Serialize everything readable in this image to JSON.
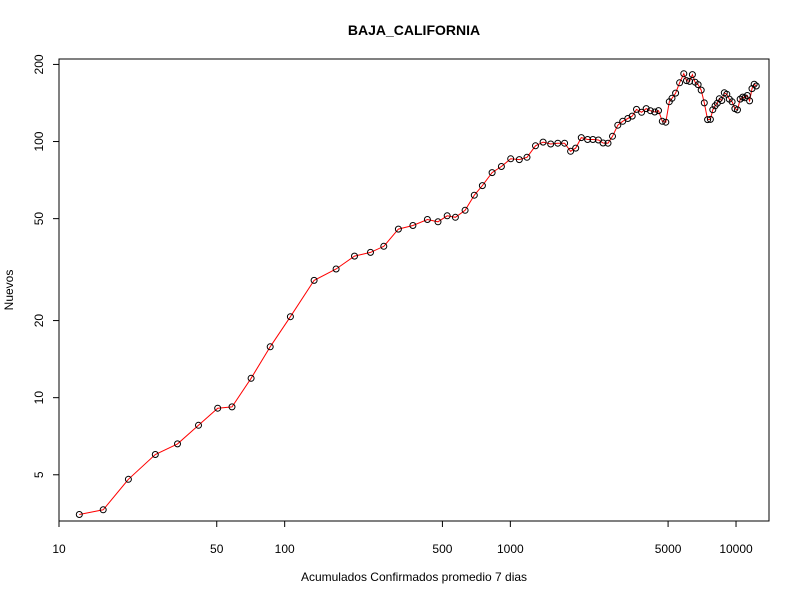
{
  "chart_data": {
    "type": "line",
    "title": "BAJA_CALIFORNIA",
    "xlabel": "Acumulados Confirmados promedio  7  dias",
    "ylabel": "Nuevos",
    "x_scale": "log",
    "y_scale": "log",
    "xlim": [
      10,
      14000
    ],
    "ylim": [
      3.3,
      210
    ],
    "grid": false,
    "legend": "none",
    "x_ticks": [
      10,
      50,
      100,
      500,
      1000,
      5000,
      10000
    ],
    "x_tick_labels": [
      "10",
      "50",
      "100",
      "500",
      "1000",
      "5000",
      "10000"
    ],
    "y_ticks": [
      5,
      10,
      20,
      50,
      100,
      200
    ],
    "y_tick_labels": [
      "5",
      "10",
      "20",
      "50",
      "100",
      "200"
    ],
    "line_color": "#ff0000",
    "marker_color": "#000000",
    "series": [
      {
        "x": [
          12.3,
          15.7,
          20.3,
          26.7,
          33.5,
          41.5,
          50.5,
          58.4,
          71,
          86.3,
          106,
          135,
          169,
          204,
          240,
          275,
          319,
          370,
          429,
          478,
          525,
          571,
          630,
          692,
          752,
          830,
          913,
          1004,
          1096,
          1185,
          1293,
          1397,
          1509,
          1622,
          1740,
          1850,
          1947,
          2063,
          2200,
          2322,
          2456,
          2575,
          2709,
          2836,
          2994,
          3147,
          3314,
          3467,
          3622,
          3814,
          4000,
          4175,
          4363,
          4532,
          4715,
          4885,
          5060,
          5202,
          5400,
          5622,
          5868,
          6035,
          6226,
          6408,
          6585,
          6791,
          7011,
          7232,
          7480,
          7700,
          7888,
          8075,
          8258,
          8433,
          8645,
          8874,
          9100,
          9334,
          9609,
          9883,
          10151,
          10436,
          10700,
          10948,
          11217,
          11484,
          11770,
          12034,
          12298
        ],
        "y": [
          3.5,
          3.65,
          4.8,
          6.0,
          6.6,
          7.8,
          9.1,
          9.2,
          11.9,
          15.8,
          20.7,
          28.7,
          31.8,
          35.7,
          36.9,
          39.0,
          45.5,
          47.0,
          49.6,
          48.6,
          51.3,
          50.6,
          53.9,
          61.7,
          67.3,
          75.6,
          79.9,
          85.6,
          85.0,
          86.8,
          96.2,
          99.5,
          97.8,
          98.5,
          98.5,
          91.6,
          94.3,
          103.6,
          101.8,
          101.8,
          101.4,
          98.7,
          98.5,
          104.8,
          115.8,
          120.0,
          123.0,
          125.7,
          133.5,
          130.1,
          134.4,
          131.9,
          130.4,
          132.1,
          120.0,
          119.0,
          143.0,
          147.5,
          154.5,
          169.5,
          184.0,
          173.0,
          171.7,
          182.5,
          170.5,
          166.8,
          158.8,
          141.5,
          121.8,
          122.0,
          133.1,
          137.9,
          141.1,
          146.9,
          144.6,
          155.0,
          153.1,
          146.5,
          142.9,
          134.4,
          132.9,
          146.5,
          149.1,
          148.2,
          151.3,
          144.1,
          160.9,
          167.5,
          164.8
        ]
      }
    ]
  }
}
